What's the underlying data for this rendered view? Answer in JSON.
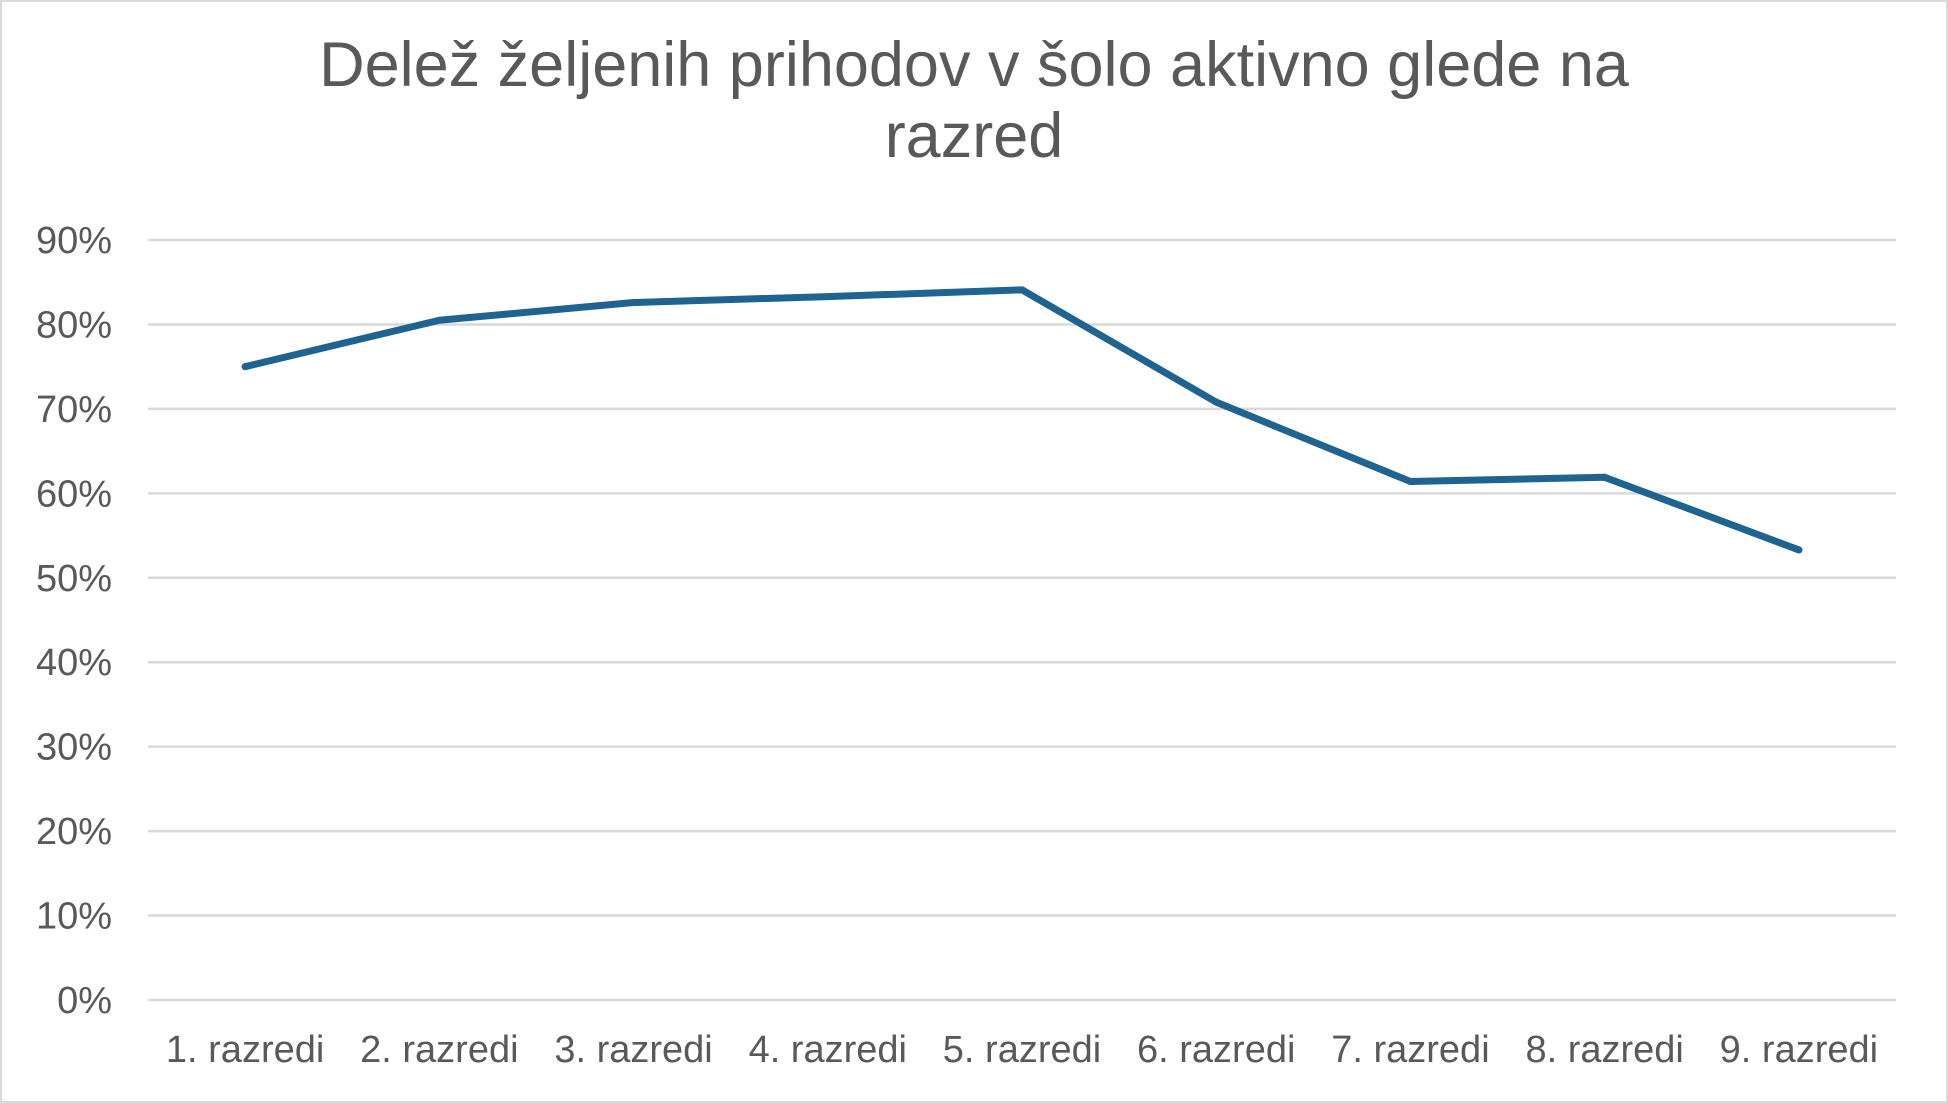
{
  "chart_data": {
    "type": "line",
    "title_lines": [
      "Delež željenih prihodov v šolo aktivno glede na",
      "razred"
    ],
    "categories": [
      "1. razredi",
      "2. razredi",
      "3. razredi",
      "4. razredi",
      "5. razredi",
      "6. razredi",
      "7. razredi",
      "8. razredi",
      "9. razredi"
    ],
    "series": [
      {
        "values": [
          0.75,
          0.805,
          0.826,
          0.833,
          0.841,
          0.708,
          0.614,
          0.619,
          0.533
        ],
        "color": "#1f6391"
      }
    ],
    "y_ticks": [
      "0%",
      "10%",
      "20%",
      "30%",
      "40%",
      "50%",
      "60%",
      "70%",
      "80%",
      "90%"
    ],
    "ylim": [
      0,
      0.9
    ],
    "grid": true,
    "legend": false,
    "xlabel": "",
    "ylabel": ""
  }
}
